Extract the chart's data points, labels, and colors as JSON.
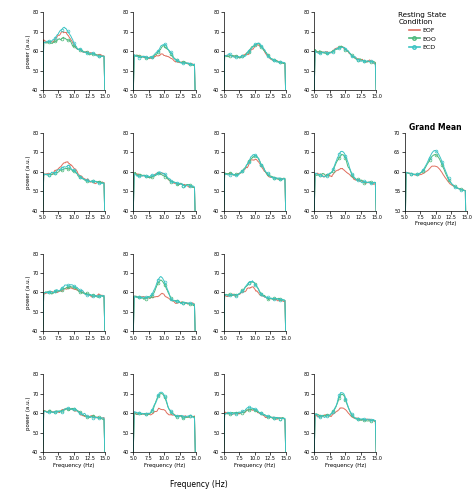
{
  "legend_title": "Resting State\nCondition",
  "legend_labels": [
    "EOF",
    "EOO",
    "ECD"
  ],
  "colors": [
    "#e07060",
    "#4db87a",
    "#3cc4c4"
  ],
  "grand_mean_title": "Grand Mean",
  "xlabel": "Frequency (Hz)",
  "ylabel": "power (a.u.)",
  "xmin": 5.0,
  "xmax": 15.0,
  "xticks": [
    5.0,
    7.5,
    10.0,
    12.5,
    15.0
  ],
  "yticks": [
    40,
    50,
    60,
    70,
    80
  ],
  "ylim": [
    40,
    80
  ],
  "n_rows": 4,
  "n_cols": 4,
  "missing_cells": [
    [
      2,
      3
    ]
  ],
  "grand_mean_cell": [
    1,
    4
  ],
  "legend_cell": [
    0,
    4
  ]
}
